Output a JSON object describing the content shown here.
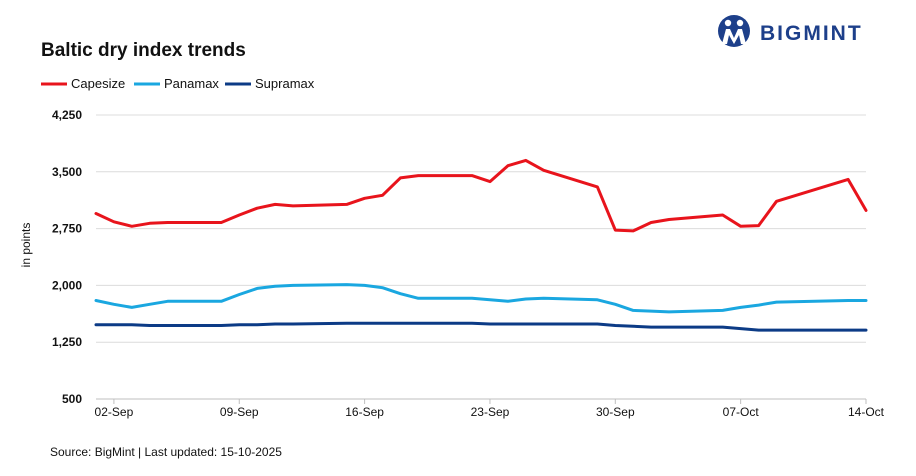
{
  "brand": {
    "logo_text": "BIGMINT",
    "color": "#1d3f8a"
  },
  "source_note": "Source: BigMint | Last updated: 15-10-2025",
  "chart_data": {
    "type": "line",
    "title": "Baltic dry index trends",
    "xlabel": "",
    "ylabel": "in points",
    "ylim": [
      500,
      4250
    ],
    "y_ticks": [
      4250,
      3500,
      2750,
      2000,
      1250,
      500
    ],
    "y_tick_labels": [
      "4,250",
      "3,500",
      "2,750",
      "2,000",
      "1,250",
      "500"
    ],
    "grid": true,
    "legend_position": "top-left",
    "x": [
      "2025-09-01",
      "2025-09-02",
      "2025-09-03",
      "2025-09-04",
      "2025-09-05",
      "2025-09-08",
      "2025-09-09",
      "2025-09-10",
      "2025-09-11",
      "2025-09-12",
      "2025-09-15",
      "2025-09-16",
      "2025-09-17",
      "2025-09-18",
      "2025-09-19",
      "2025-09-22",
      "2025-09-23",
      "2025-09-24",
      "2025-09-25",
      "2025-09-26",
      "2025-09-29",
      "2025-09-30",
      "2025-10-01",
      "2025-10-02",
      "2025-10-03",
      "2025-10-06",
      "2025-10-07",
      "2025-10-08",
      "2025-10-09",
      "2025-10-13",
      "2025-10-14"
    ],
    "x_tick_labels": [
      "02-Sep",
      "09-Sep",
      "16-Sep",
      "23-Sep",
      "30-Sep",
      "07-Oct",
      "14-Oct"
    ],
    "x_tick_dates": [
      "2025-09-02",
      "2025-09-09",
      "2025-09-16",
      "2025-09-23",
      "2025-09-30",
      "2025-10-07",
      "2025-10-14"
    ],
    "series": [
      {
        "name": "Capesize",
        "color": "#e8141c",
        "values": [
          2950,
          2840,
          2780,
          2820,
          2830,
          2830,
          2930,
          3020,
          3070,
          3050,
          3070,
          3150,
          3190,
          3420,
          3450,
          3450,
          3370,
          3580,
          3650,
          3520,
          3300,
          2730,
          2720,
          2830,
          2870,
          2930,
          2780,
          2790,
          3110,
          3400,
          2990
        ]
      },
      {
        "name": "Panamax",
        "color": "#1aa7e0",
        "values": [
          1800,
          1750,
          1710,
          1750,
          1790,
          1790,
          1880,
          1960,
          1990,
          2000,
          2010,
          2000,
          1970,
          1890,
          1830,
          1830,
          1810,
          1790,
          1820,
          1830,
          1810,
          1750,
          1670,
          1660,
          1650,
          1670,
          1710,
          1740,
          1780,
          1800,
          1800
        ]
      },
      {
        "name": "Supramax",
        "color": "#0c3b86",
        "values": [
          1480,
          1480,
          1480,
          1470,
          1470,
          1470,
          1480,
          1480,
          1490,
          1490,
          1500,
          1500,
          1500,
          1500,
          1500,
          1500,
          1490,
          1490,
          1490,
          1490,
          1490,
          1470,
          1460,
          1450,
          1450,
          1450,
          1430,
          1410,
          1410,
          1410,
          1410
        ]
      }
    ]
  }
}
